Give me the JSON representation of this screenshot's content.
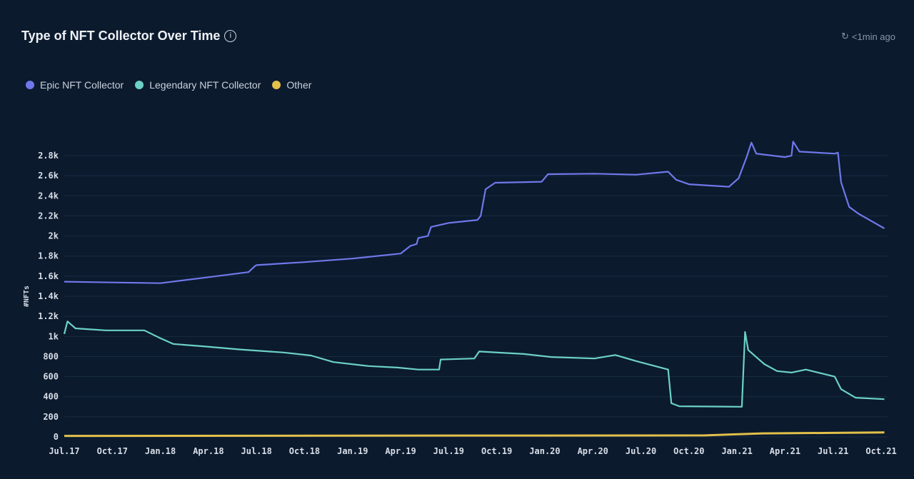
{
  "header": {
    "title": "Type of NFT Collector Over Time",
    "info_icon": "info-icon",
    "updated": "<1min ago",
    "updated_icon": "refresh-clock-icon"
  },
  "chart_data": {
    "type": "line",
    "title": "Type of NFT Collector Over Time",
    "xlabel": "",
    "ylabel": "#NFTs",
    "ylim": [
      0,
      2800
    ],
    "xlim_months_since_jul17": [
      0,
      51.4
    ],
    "legend_position": "top-left",
    "grid": true,
    "x_ticks": [
      "Jul.17",
      "Oct.17",
      "Jan.18",
      "Apr.18",
      "Jul.18",
      "Oct.18",
      "Jan.19",
      "Apr.19",
      "Jul.19",
      "Oct.19",
      "Jan.20",
      "Apr.20",
      "Jul.20",
      "Oct.20",
      "Jan.21",
      "Apr.21",
      "Jul.21",
      "Oct.21"
    ],
    "y_ticks": [
      {
        "v": 0,
        "label": "0"
      },
      {
        "v": 200,
        "label": "200"
      },
      {
        "v": 400,
        "label": "400"
      },
      {
        "v": 600,
        "label": "600"
      },
      {
        "v": 800,
        "label": "800"
      },
      {
        "v": 1000,
        "label": "1k"
      },
      {
        "v": 1200,
        "label": "1.2k"
      },
      {
        "v": 1400,
        "label": "1.4k"
      },
      {
        "v": 1600,
        "label": "1.6k"
      },
      {
        "v": 1800,
        "label": "1.8k"
      },
      {
        "v": 2000,
        "label": "2k"
      },
      {
        "v": 2200,
        "label": "2.2k"
      },
      {
        "v": 2400,
        "label": "2.4k"
      },
      {
        "v": 2600,
        "label": "2.6k"
      },
      {
        "v": 2800,
        "label": "2.8k"
      }
    ],
    "series": [
      {
        "name": "Epic NFT Collector",
        "color": "#6f78ea",
        "points": [
          [
            0,
            1545
          ],
          [
            6,
            1530
          ],
          [
            9,
            1590
          ],
          [
            11.5,
            1640
          ],
          [
            11.9,
            1700
          ],
          [
            12,
            1710
          ],
          [
            15,
            1740
          ],
          [
            18,
            1775
          ],
          [
            21,
            1825
          ],
          [
            21.6,
            1900
          ],
          [
            22,
            1920
          ],
          [
            22.1,
            1980
          ],
          [
            22.7,
            2000
          ],
          [
            22.9,
            2090
          ],
          [
            24,
            2130
          ],
          [
            25.8,
            2160
          ],
          [
            26,
            2200
          ],
          [
            26.3,
            2465
          ],
          [
            26.9,
            2530
          ],
          [
            29.8,
            2540
          ],
          [
            30.2,
            2615
          ],
          [
            33.1,
            2620
          ],
          [
            35.7,
            2610
          ],
          [
            37.7,
            2640
          ],
          [
            38.2,
            2560
          ],
          [
            39,
            2515
          ],
          [
            41.5,
            2490
          ],
          [
            42.1,
            2575
          ],
          [
            42.6,
            2785
          ],
          [
            42.9,
            2930
          ],
          [
            43.2,
            2820
          ],
          [
            45,
            2785
          ],
          [
            45.4,
            2800
          ],
          [
            45.5,
            2940
          ],
          [
            45.9,
            2840
          ],
          [
            48.1,
            2820
          ],
          [
            48.3,
            2830
          ],
          [
            48.5,
            2535
          ],
          [
            49,
            2290
          ],
          [
            49.6,
            2220
          ],
          [
            51.2,
            2075
          ]
        ]
      },
      {
        "name": "Legendary NFT Collector",
        "color": "#6cd1c6",
        "points": [
          [
            0,
            1025
          ],
          [
            0.2,
            1150
          ],
          [
            0.7,
            1080
          ],
          [
            2.6,
            1060
          ],
          [
            5,
            1060
          ],
          [
            5.9,
            990
          ],
          [
            6.8,
            925
          ],
          [
            8.8,
            900
          ],
          [
            11,
            870
          ],
          [
            13.7,
            840
          ],
          [
            15.4,
            810
          ],
          [
            16.8,
            745
          ],
          [
            19,
            705
          ],
          [
            20.8,
            690
          ],
          [
            22.1,
            670
          ],
          [
            23.4,
            670
          ],
          [
            23.5,
            770
          ],
          [
            25.6,
            780
          ],
          [
            25.9,
            850
          ],
          [
            28.7,
            825
          ],
          [
            30.4,
            795
          ],
          [
            33.1,
            780
          ],
          [
            34.4,
            815
          ],
          [
            35.7,
            755
          ],
          [
            37.7,
            670
          ],
          [
            37.9,
            335
          ],
          [
            38.4,
            305
          ],
          [
            42.3,
            300
          ],
          [
            42.5,
            1045
          ],
          [
            42.7,
            865
          ],
          [
            43.7,
            725
          ],
          [
            44.5,
            655
          ],
          [
            45.4,
            640
          ],
          [
            46.3,
            670
          ],
          [
            48.1,
            600
          ],
          [
            48.5,
            475
          ],
          [
            49.4,
            390
          ],
          [
            51.2,
            375
          ]
        ]
      },
      {
        "name": "Other",
        "color": "#e3c04a",
        "points": [
          [
            0,
            10
          ],
          [
            40,
            15
          ],
          [
            43.6,
            35
          ],
          [
            48,
            40
          ],
          [
            51.2,
            45
          ]
        ]
      }
    ]
  }
}
